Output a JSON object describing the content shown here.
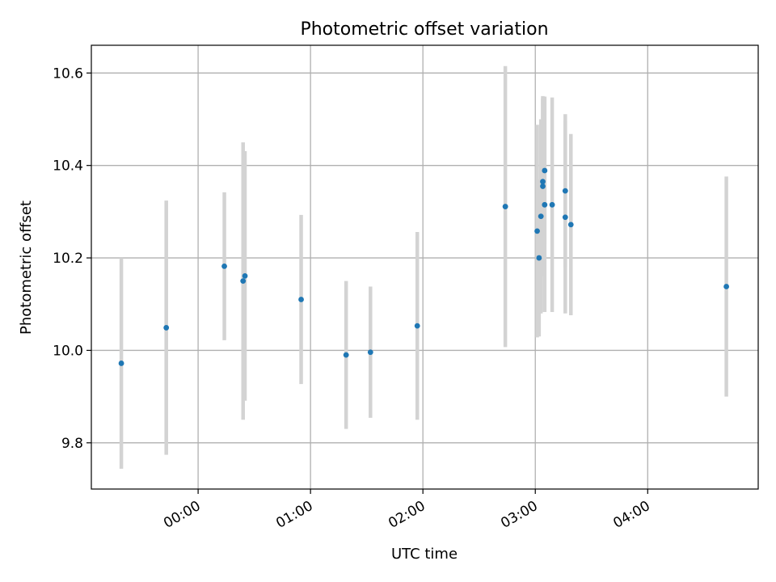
{
  "chart_data": {
    "type": "scatter",
    "title": "Photometric offset variation",
    "xlabel": "UTC time",
    "ylabel": "Photometric offset",
    "x_axis_format": "HH:MM",
    "x_ticks": [
      "00:00",
      "01:00",
      "02:00",
      "03:00",
      "04:00"
    ],
    "y_ticks": [
      9.8,
      10.0,
      10.2,
      10.4,
      10.6
    ],
    "xlim": [
      "-00:57",
      "04:59"
    ],
    "ylim": [
      9.7,
      10.66
    ],
    "grid": true,
    "colors": {
      "point": "#1f77b4",
      "errorbar": "#d3d3d3",
      "grid": "#b0b0b0"
    },
    "points": [
      {
        "x": "-00:41",
        "y": 9.972,
        "err": 0.228
      },
      {
        "x": "-00:17",
        "y": 10.049,
        "err": 0.275
      },
      {
        "x": "00:14",
        "y": 10.182,
        "err": 0.16
      },
      {
        "x": "00:24",
        "y": 10.15,
        "err": 0.3
      },
      {
        "x": "00:25",
        "y": 10.161,
        "err": 0.27
      },
      {
        "x": "00:55",
        "y": 10.11,
        "err": 0.183
      },
      {
        "x": "01:19",
        "y": 9.99,
        "err": 0.16
      },
      {
        "x": "01:32",
        "y": 9.996,
        "err": 0.142
      },
      {
        "x": "01:57",
        "y": 10.053,
        "err": 0.203
      },
      {
        "x": "02:44",
        "y": 10.311,
        "err": 0.304
      },
      {
        "x": "03:01",
        "y": 10.258,
        "err": 0.23
      },
      {
        "x": "03:02",
        "y": 10.2,
        "err": 0.17
      },
      {
        "x": "03:03",
        "y": 10.29,
        "err": 0.21
      },
      {
        "x": "03:04",
        "y": 10.355,
        "err": 0.195
      },
      {
        "x": "03:04",
        "y": 10.365,
        "err": 0.18
      },
      {
        "x": "03:05",
        "y": 10.389,
        "err": 0.16
      },
      {
        "x": "03:05",
        "y": 10.315,
        "err": 0.232
      },
      {
        "x": "03:09",
        "y": 10.315,
        "err": 0.232
      },
      {
        "x": "03:16",
        "y": 10.345,
        "err": 0.166
      },
      {
        "x": "03:16",
        "y": 10.288,
        "err": 0.208
      },
      {
        "x": "03:19",
        "y": 10.272,
        "err": 0.196
      },
      {
        "x": "04:42",
        "y": 10.138,
        "err": 0.238
      }
    ]
  }
}
